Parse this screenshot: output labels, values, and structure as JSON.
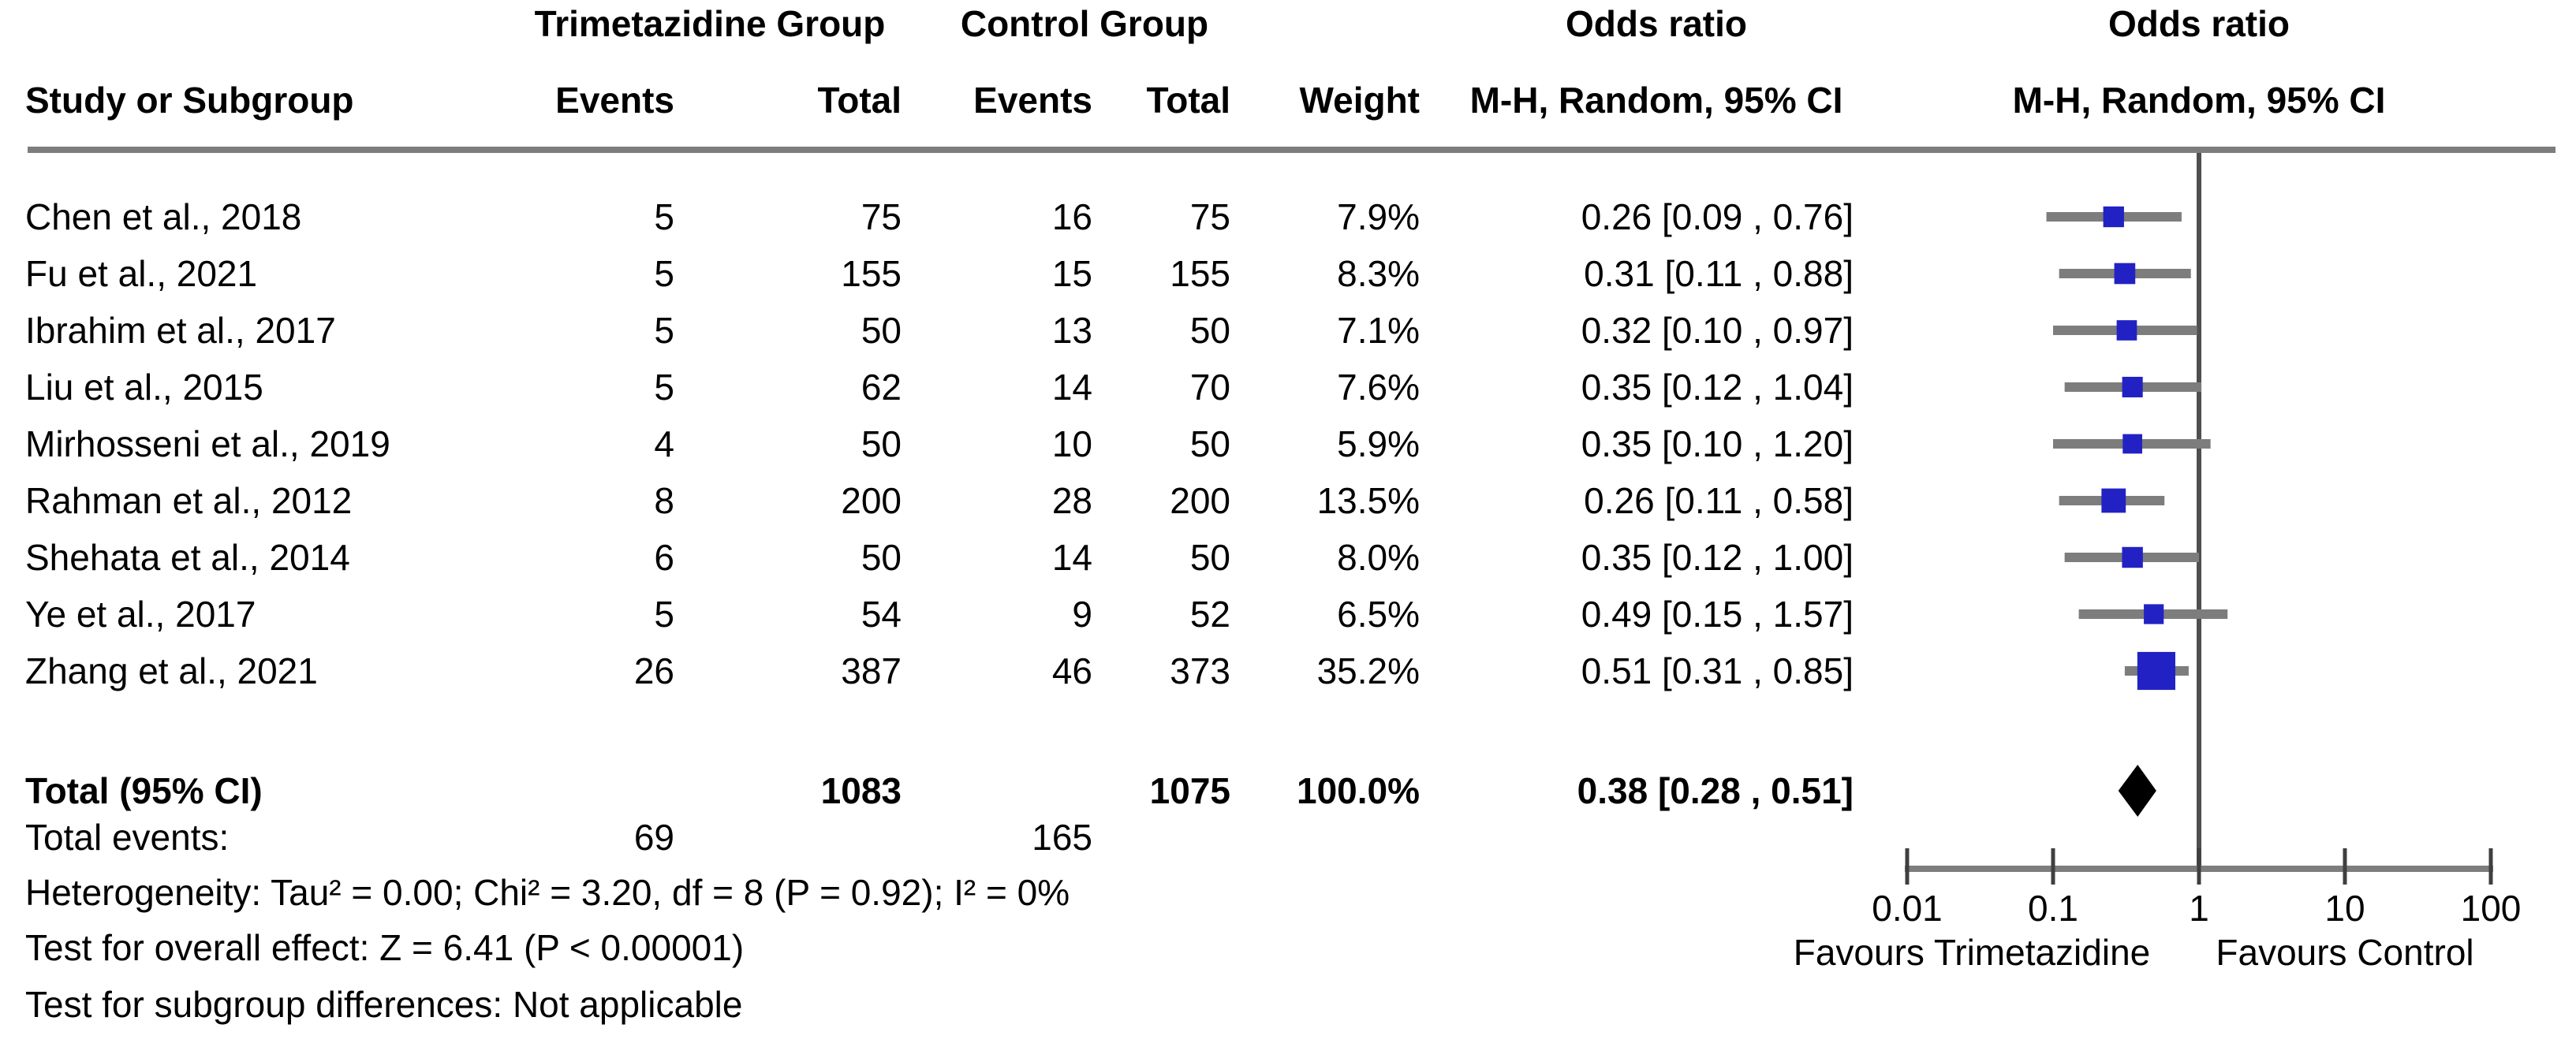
{
  "colors": {
    "background": "#ffffff",
    "text": "#000000",
    "line_gray": "#7d7d7d",
    "axis_gray": "#7d7d7d",
    "tick_dark": "#3f3f3f",
    "null_line_gray": "#4f4f4f",
    "marker_blue": "#2222c4",
    "diamond_black": "#000000"
  },
  "header": {
    "group1": "Trimetazidine Group",
    "group2": "Control Group",
    "study": "Study or Subgroup",
    "events": "Events",
    "total": "Total",
    "weight": "Weight",
    "or_col_title": "Odds ratio",
    "or_col_sub": "M-H, Random, 95% CI",
    "plot_title": "Odds ratio",
    "plot_sub": "M-H, Random, 95% CI"
  },
  "table": {
    "rows": [
      {
        "study": "Chen et al., 2018",
        "t_events": "5",
        "t_total": "75",
        "c_events": "16",
        "c_total": "75",
        "weight": "7.9%",
        "or_ci": "0.26 [0.09 , 0.76]"
      },
      {
        "study": "Fu et al., 2021",
        "t_events": "5",
        "t_total": "155",
        "c_events": "15",
        "c_total": "155",
        "weight": "8.3%",
        "or_ci": "0.31 [0.11 , 0.88]"
      },
      {
        "study": "Ibrahim et al., 2017",
        "t_events": "5",
        "t_total": "50",
        "c_events": "13",
        "c_total": "50",
        "weight": "7.1%",
        "or_ci": "0.32 [0.10 , 0.97]"
      },
      {
        "study": "Liu et al., 2015",
        "t_events": "5",
        "t_total": "62",
        "c_events": "14",
        "c_total": "70",
        "weight": "7.6%",
        "or_ci": "0.35 [0.12 , 1.04]"
      },
      {
        "study": "Mirhosseni et al., 2019",
        "t_events": "4",
        "t_total": "50",
        "c_events": "10",
        "c_total": "50",
        "weight": "5.9%",
        "or_ci": "0.35 [0.10 , 1.20]"
      },
      {
        "study": "Rahman et al., 2012",
        "t_events": "8",
        "t_total": "200",
        "c_events": "28",
        "c_total": "200",
        "weight": "13.5%",
        "or_ci": "0.26 [0.11 , 0.58]"
      },
      {
        "study": "Shehata et al., 2014",
        "t_events": "6",
        "t_total": "50",
        "c_events": "14",
        "c_total": "50",
        "weight": "8.0%",
        "or_ci": "0.35 [0.12 , 1.00]"
      },
      {
        "study": "Ye et al., 2017",
        "t_events": "5",
        "t_total": "54",
        "c_events": "9",
        "c_total": "52",
        "weight": "6.5%",
        "or_ci": "0.49 [0.15 , 1.57]"
      },
      {
        "study": "Zhang et al., 2021",
        "t_events": "26",
        "t_total": "387",
        "c_events": "46",
        "c_total": "373",
        "weight": "35.2%",
        "or_ci": "0.51 [0.31 , 0.85]"
      }
    ],
    "total_row": {
      "label": "Total (95% CI)",
      "t_total": "1083",
      "c_total": "1075",
      "weight": "100.0%",
      "or_ci": "0.38 [0.28 , 0.51]"
    },
    "total_events": {
      "label": "Total events:",
      "t_events": "69",
      "c_events": "165"
    },
    "footnotes": [
      "Heterogeneity: Tau² = 0.00; Chi² = 3.20, df = 8 (P = 0.92); I² = 0%",
      "Test for overall effect: Z = 6.41 (P < 0.00001)",
      "Test for subgroup differences: Not applicable"
    ]
  },
  "chart_data": {
    "type": "forest",
    "x_scale": "log10",
    "x_range": [
      0.01,
      100
    ],
    "null_line": 1,
    "x_ticks": [
      {
        "value": 0.01,
        "label": "0.01"
      },
      {
        "value": 0.1,
        "label": "0.1"
      },
      {
        "value": 1,
        "label": "1"
      },
      {
        "value": 10,
        "label": "10"
      },
      {
        "value": 100,
        "label": "100"
      }
    ],
    "series": [
      {
        "name": "Chen et al., 2018",
        "or": 0.26,
        "ci_low": 0.09,
        "ci_high": 0.76,
        "weight_pct": 7.9
      },
      {
        "name": "Fu et al., 2021",
        "or": 0.31,
        "ci_low": 0.11,
        "ci_high": 0.88,
        "weight_pct": 8.3
      },
      {
        "name": "Ibrahim et al., 2017",
        "or": 0.32,
        "ci_low": 0.1,
        "ci_high": 0.97,
        "weight_pct": 7.1
      },
      {
        "name": "Liu et al., 2015",
        "or": 0.35,
        "ci_low": 0.12,
        "ci_high": 1.04,
        "weight_pct": 7.6
      },
      {
        "name": "Mirhosseni et al., 2019",
        "or": 0.35,
        "ci_low": 0.1,
        "ci_high": 1.2,
        "weight_pct": 5.9
      },
      {
        "name": "Rahman et al., 2012",
        "or": 0.26,
        "ci_low": 0.11,
        "ci_high": 0.58,
        "weight_pct": 13.5
      },
      {
        "name": "Shehata et al., 2014",
        "or": 0.35,
        "ci_low": 0.12,
        "ci_high": 1.0,
        "weight_pct": 8.0
      },
      {
        "name": "Ye et al., 2017",
        "or": 0.49,
        "ci_low": 0.15,
        "ci_high": 1.57,
        "weight_pct": 6.5
      },
      {
        "name": "Zhang et al., 2021",
        "or": 0.51,
        "ci_low": 0.31,
        "ci_high": 0.85,
        "weight_pct": 35.2
      }
    ],
    "total": {
      "name": "Total (95% CI)",
      "or": 0.38,
      "ci_low": 0.28,
      "ci_high": 0.51,
      "weight_pct": 100.0
    },
    "favours_left": "Favours Trimetazidine",
    "favours_right": "Favours Control"
  }
}
